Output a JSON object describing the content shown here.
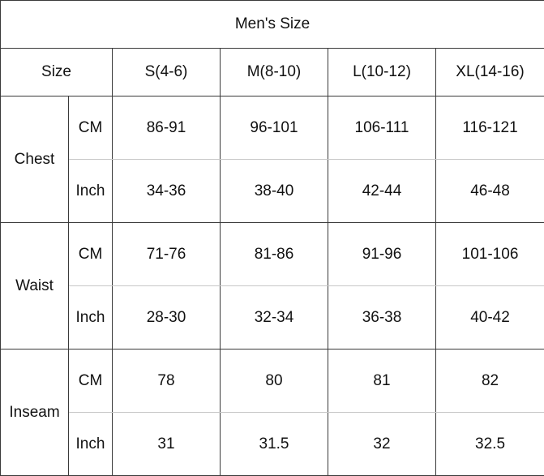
{
  "title": "Men's Size",
  "header": {
    "size_label": "Size",
    "sizes": [
      "S(4-6)",
      "M(8-10)",
      "L(10-12)",
      "XL(14-16)"
    ]
  },
  "groups": [
    {
      "name": "Chest",
      "rows": [
        {
          "unit": "CM",
          "values": [
            "86-91",
            "96-101",
            "106-111",
            "116-121"
          ]
        },
        {
          "unit": "Inch",
          "values": [
            "34-36",
            "38-40",
            "42-44",
            "46-48"
          ]
        }
      ]
    },
    {
      "name": "Waist",
      "rows": [
        {
          "unit": "CM",
          "values": [
            "71-76",
            "81-86",
            "91-96",
            "101-106"
          ]
        },
        {
          "unit": "Inch",
          "values": [
            "28-30",
            "32-34",
            "36-38",
            "40-42"
          ]
        }
      ]
    },
    {
      "name": "Inseam",
      "rows": [
        {
          "unit": "CM",
          "values": [
            "78",
            "80",
            "81",
            "82"
          ]
        },
        {
          "unit": "Inch",
          "values": [
            "31",
            "31.5",
            "32",
            "32.5"
          ]
        }
      ]
    }
  ]
}
